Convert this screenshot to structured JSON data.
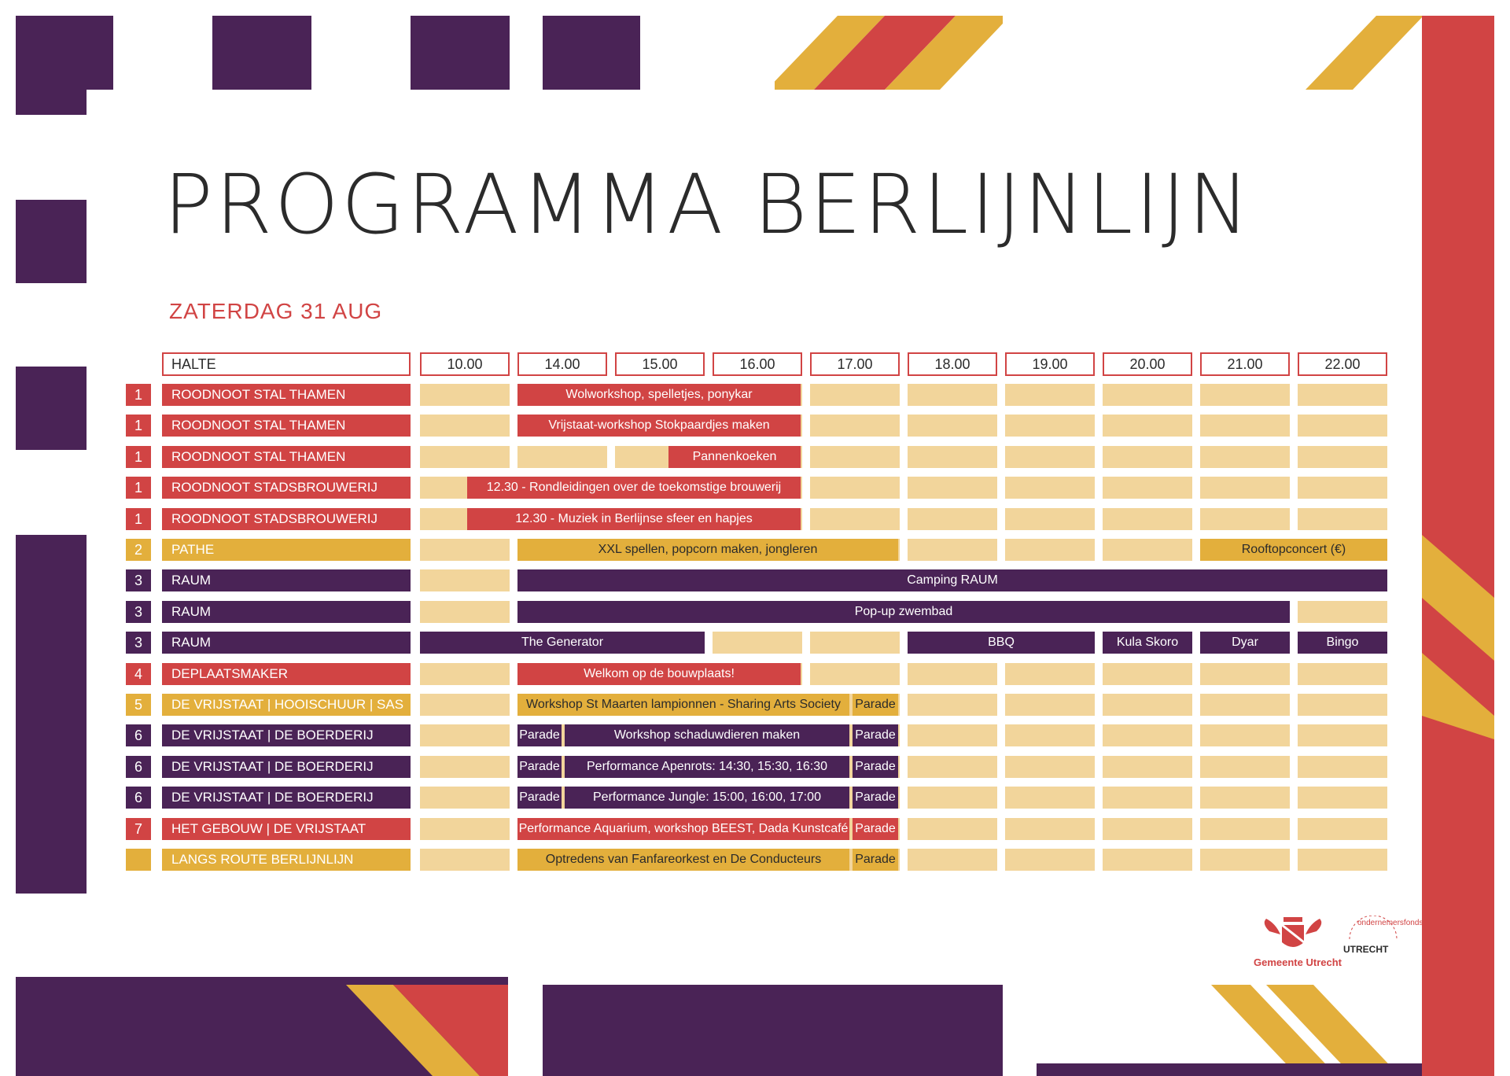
{
  "title": "PROGRAMMA BERLIJNLIJN",
  "subtitle": "ZATERDAG 31 AUG",
  "header": {
    "halte": "HALTE",
    "times": [
      "10.00",
      "14.00",
      "15.00",
      "16.00",
      "17.00",
      "18.00",
      "19.00",
      "20.00",
      "21.00",
      "22.00"
    ]
  },
  "colors": {
    "purple": "#4a2356",
    "red": "#d14444",
    "yellow": "#e3af3c",
    "slot": "#f2d59b"
  },
  "rows": [
    {
      "num": "1",
      "loc": "ROODNOOT STAL THAMEN",
      "color": "red",
      "events": [
        {
          "text": "Wolworkshop, spelletjes, ponykar"
        }
      ]
    },
    {
      "num": "1",
      "loc": "ROODNOOT STAL THAMEN",
      "color": "red",
      "events": [
        {
          "text": "Vrijstaat-workshop Stokpaardjes maken"
        }
      ]
    },
    {
      "num": "1",
      "loc": "ROODNOOT STAL THAMEN",
      "color": "red",
      "events": [
        {
          "text": "Pannenkoeken"
        }
      ]
    },
    {
      "num": "1",
      "loc": "ROODNOOT STADSBROUWERIJ",
      "color": "red",
      "events": [
        {
          "text": "12.30 - Rondleidingen over de toekomstige brouwerij"
        }
      ]
    },
    {
      "num": "1",
      "loc": "ROODNOOT STADSBROUWERIJ",
      "color": "red",
      "events": [
        {
          "text": "12.30 - Muziek in Berlijnse sfeer en hapjes"
        }
      ]
    },
    {
      "num": "2",
      "loc": "PATHE",
      "color": "yellow",
      "events": [
        {
          "text": "XXL spellen, popcorn maken, jongleren"
        },
        {
          "text": "Rooftopconcert (€)"
        }
      ]
    },
    {
      "num": "3",
      "loc": "RAUM",
      "color": "purple",
      "events": [
        {
          "text": "Camping RAUM"
        }
      ]
    },
    {
      "num": "3",
      "loc": "RAUM",
      "color": "purple",
      "events": [
        {
          "text": "Pop-up zwembad"
        }
      ]
    },
    {
      "num": "3",
      "loc": "RAUM",
      "color": "purple",
      "events": [
        {
          "text": "The Generator"
        },
        {
          "text": "BBQ"
        },
        {
          "text": "Kula Skoro"
        },
        {
          "text": "Dyar"
        },
        {
          "text": "Bingo"
        }
      ]
    },
    {
      "num": "4",
      "loc": "DEPLAATSMAKER",
      "color": "red",
      "events": [
        {
          "text": "Welkom op de bouwplaats!"
        }
      ]
    },
    {
      "num": "5",
      "loc": "DE VRIJSTAAT | HOOISCHUUR | SAS",
      "color": "yellow",
      "events": [
        {
          "text": "Workshop St Maarten lampionnen - Sharing Arts Society"
        },
        {
          "text": "Parade"
        }
      ]
    },
    {
      "num": "6",
      "loc": "DE VRIJSTAAT | DE BOERDERIJ",
      "color": "purple",
      "events": [
        {
          "text": "Parade"
        },
        {
          "text": "Workshop schaduwdieren maken"
        },
        {
          "text": "Parade"
        }
      ]
    },
    {
      "num": "6",
      "loc": "DE VRIJSTAAT | DE BOERDERIJ",
      "color": "purple",
      "events": [
        {
          "text": "Parade"
        },
        {
          "text": "Performance Apenrots: 14:30, 15:30, 16:30"
        },
        {
          "text": "Parade"
        }
      ]
    },
    {
      "num": "6",
      "loc": "DE VRIJSTAAT | DE BOERDERIJ",
      "color": "purple",
      "events": [
        {
          "text": "Parade"
        },
        {
          "text": "Performance Jungle: 15:00, 16:00, 17:00"
        },
        {
          "text": "Parade"
        }
      ]
    },
    {
      "num": "7",
      "loc": "HET GEBOUW | DE VRIJSTAAT",
      "color": "red",
      "events": [
        {
          "text": "Performance Aquarium, workshop BEEST, Dada Kunstcafé"
        },
        {
          "text": "Parade"
        }
      ]
    },
    {
      "num": "",
      "loc": "LANGS ROUTE BERLIJNLIJN",
      "color": "yellow",
      "events": [
        {
          "text": "Optredens van Fanfareorkest en De Conducteurs"
        },
        {
          "text": "Parade"
        }
      ]
    }
  ],
  "logos": {
    "gemeente": "Gemeente Utrecht",
    "utrecht": "UTRECHT",
    "ondernemersfonds": "ondernemersfonds"
  }
}
